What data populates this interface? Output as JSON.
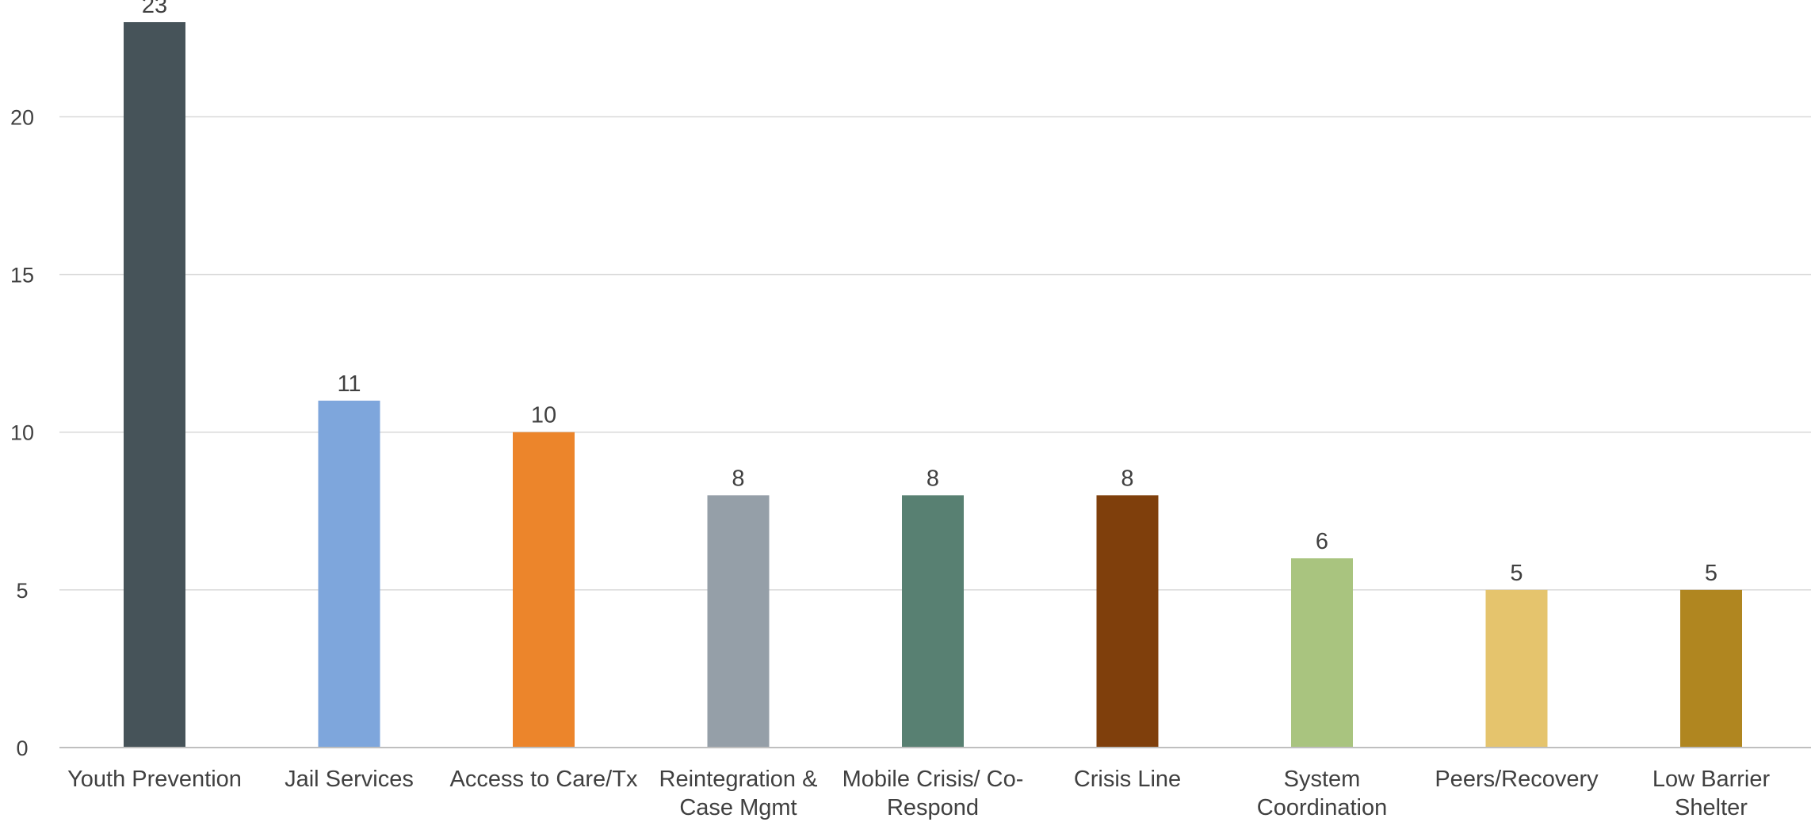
{
  "chart_data": {
    "type": "bar",
    "title": "",
    "xlabel": "",
    "ylabel": "",
    "ylim": [
      0,
      23
    ],
    "yticks": [
      0,
      5,
      10,
      15,
      20
    ],
    "grid": true,
    "legend": "none",
    "categories": [
      [
        "Youth Prevention"
      ],
      [
        "Jail Services"
      ],
      [
        "Access to Care/Tx"
      ],
      [
        "Reintegration &",
        "Case Mgmt"
      ],
      [
        "Mobile Crisis/ Co-",
        "Respond"
      ],
      [
        "Crisis Line"
      ],
      [
        "System",
        "Coordination"
      ],
      [
        "Peers/Recovery"
      ],
      [
        "Low Barrier",
        "Shelter"
      ]
    ],
    "values": [
      23,
      11,
      10,
      8,
      8,
      8,
      6,
      5,
      5
    ],
    "data_labels": [
      "23",
      "11",
      "10",
      "8",
      "8",
      "8",
      "6",
      "5",
      "5"
    ],
    "colors": [
      "#465359",
      "#7ea6dc",
      "#ec852b",
      "#959fa8",
      "#588072",
      "#7f3f0c",
      "#a9c47f",
      "#e5c46d",
      "#b08620"
    ]
  }
}
